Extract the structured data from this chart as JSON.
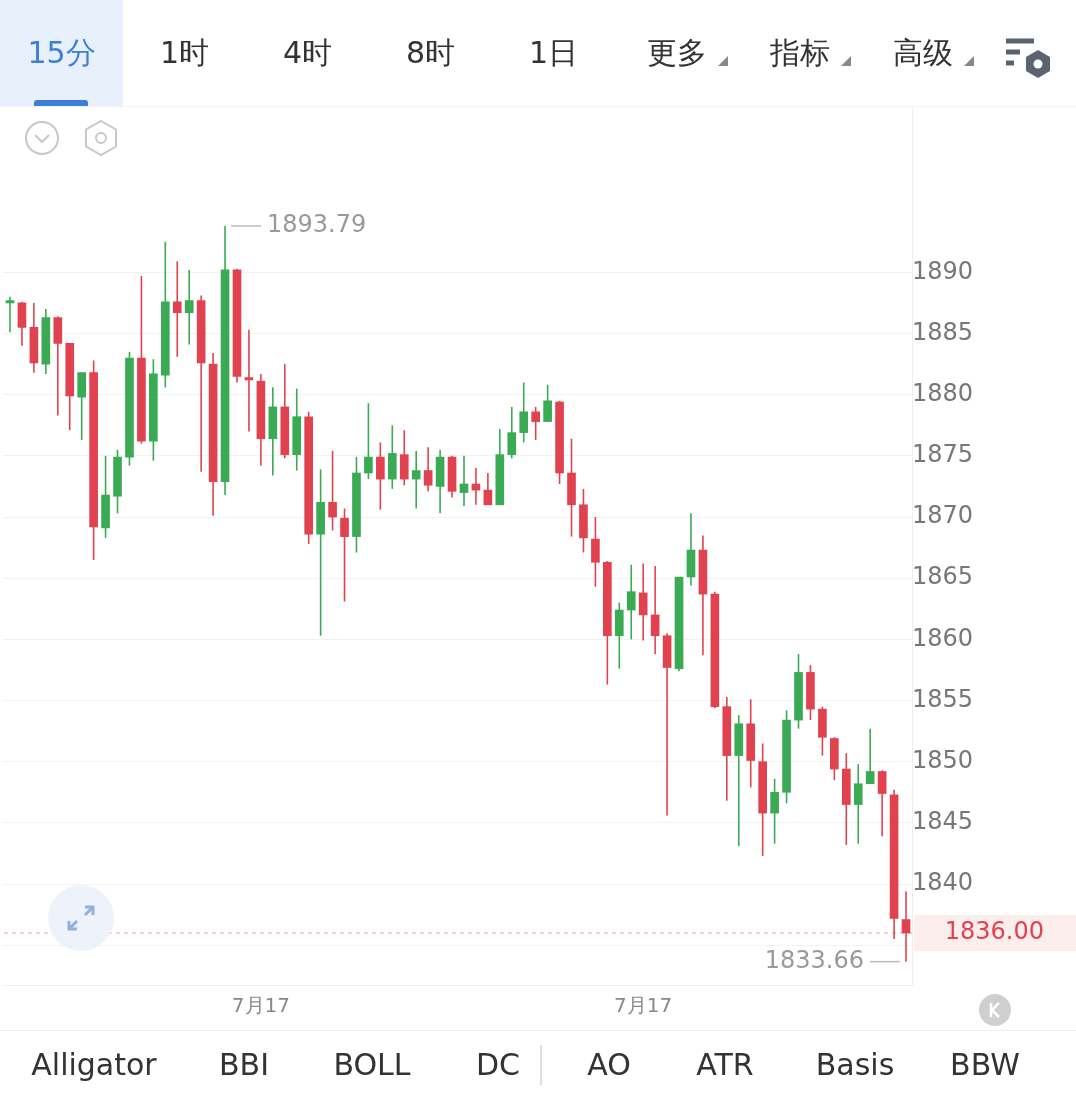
{
  "chart_data": {
    "type": "candlestick",
    "categories": [
      null,
      null,
      null,
      null,
      null,
      null,
      null,
      null,
      null,
      null,
      null,
      null,
      null,
      null,
      null,
      null,
      null,
      null,
      null,
      null,
      null,
      "7月17",
      null,
      null,
      null,
      null,
      null,
      null,
      null,
      null,
      null,
      null,
      null,
      null,
      null,
      null,
      null,
      null,
      null,
      null,
      null,
      null,
      null,
      null,
      null,
      null,
      null,
      null,
      null,
      null,
      null,
      null,
      null,
      "7月17",
      null,
      null,
      null,
      null,
      null,
      null,
      null,
      null,
      null,
      null,
      null,
      null,
      null,
      null,
      null,
      null,
      null,
      null,
      null,
      null,
      null,
      null
    ],
    "ohlc": [
      [
        1887.5,
        1888.0,
        1885.1,
        1887.7
      ],
      [
        1887.5,
        1887.6,
        1884.0,
        1885.5
      ],
      [
        1885.5,
        1887.5,
        1881.8,
        1882.6
      ],
      [
        1882.5,
        1887.0,
        1881.7,
        1886.3
      ],
      [
        1886.3,
        1886.4,
        1878.3,
        1884.2
      ],
      [
        1884.2,
        1884.2,
        1877.1,
        1879.9
      ],
      [
        1879.8,
        1881.8,
        1876.3,
        1881.8
      ],
      [
        1881.8,
        1882.8,
        1866.5,
        1869.2
      ],
      [
        1869.1,
        1875.0,
        1868.3,
        1871.8
      ],
      [
        1871.7,
        1875.5,
        1870.3,
        1874.9
      ],
      [
        1874.9,
        1883.5,
        1874.2,
        1883.0
      ],
      [
        1883.0,
        1889.7,
        1876.0,
        1876.2
      ],
      [
        1876.2,
        1882.9,
        1874.6,
        1881.7
      ],
      [
        1881.6,
        1892.5,
        1880.6,
        1887.6
      ],
      [
        1887.6,
        1890.9,
        1883.1,
        1886.7
      ],
      [
        1886.7,
        1890.2,
        1884.1,
        1887.7
      ],
      [
        1887.7,
        1888.1,
        1873.7,
        1882.6
      ],
      [
        1882.5,
        1883.4,
        1870.1,
        1872.9
      ],
      [
        1872.9,
        1893.79,
        1871.8,
        1890.2
      ],
      [
        1890.2,
        1890.3,
        1881.0,
        1881.5
      ],
      [
        1881.4,
        1885.3,
        1877.0,
        1881.2
      ],
      [
        1881.1,
        1881.7,
        1874.2,
        1876.4
      ],
      [
        1876.4,
        1880.6,
        1873.4,
        1879.0
      ],
      [
        1879.0,
        1882.5,
        1874.8,
        1875.1
      ],
      [
        1875.1,
        1880.5,
        1873.8,
        1878.2
      ],
      [
        1878.2,
        1878.6,
        1867.8,
        1868.6
      ],
      [
        1868.6,
        1873.9,
        1860.3,
        1871.2
      ],
      [
        1871.2,
        1875.4,
        1868.9,
        1870.0
      ],
      [
        1869.9,
        1870.7,
        1863.1,
        1868.4
      ],
      [
        1868.4,
        1874.9,
        1867.1,
        1873.6
      ],
      [
        1873.6,
        1879.3,
        1873.1,
        1874.9
      ],
      [
        1874.9,
        1876.1,
        1870.6,
        1873.1
      ],
      [
        1873.1,
        1877.5,
        1872.3,
        1875.2
      ],
      [
        1875.1,
        1877.1,
        1872.6,
        1873.1
      ],
      [
        1873.1,
        1875.4,
        1870.7,
        1873.8
      ],
      [
        1873.8,
        1875.7,
        1872.1,
        1872.6
      ],
      [
        1872.5,
        1875.5,
        1870.3,
        1874.9
      ],
      [
        1874.9,
        1875.0,
        1871.6,
        1872.1
      ],
      [
        1872.0,
        1875.0,
        1870.9,
        1872.7
      ],
      [
        1872.7,
        1874.0,
        1871.0,
        1872.2
      ],
      [
        1872.2,
        1873.6,
        1871.0,
        1871.0
      ],
      [
        1871.0,
        1877.2,
        1871.0,
        1875.1
      ],
      [
        1875.1,
        1879.0,
        1874.8,
        1876.9
      ],
      [
        1876.9,
        1881.0,
        1876.1,
        1878.6
      ],
      [
        1878.6,
        1879.0,
        1876.3,
        1877.8
      ],
      [
        1877.8,
        1880.8,
        1877.8,
        1879.5
      ],
      [
        1879.4,
        1879.5,
        1872.7,
        1873.6
      ],
      [
        1873.6,
        1876.4,
        1868.4,
        1871.0
      ],
      [
        1871.0,
        1872.3,
        1867.1,
        1868.3
      ],
      [
        1868.2,
        1870.0,
        1864.3,
        1866.3
      ],
      [
        1866.3,
        1866.4,
        1856.3,
        1860.3
      ],
      [
        1860.3,
        1863.0,
        1857.6,
        1862.4
      ],
      [
        1862.4,
        1866.1,
        1860.0,
        1863.9
      ],
      [
        1863.8,
        1866.2,
        1859.9,
        1862.0
      ],
      [
        1862.0,
        1866.0,
        1858.8,
        1860.3
      ],
      [
        1860.3,
        1860.5,
        1845.6,
        1857.7
      ],
      [
        1857.6,
        1865.1,
        1857.4,
        1865.1
      ],
      [
        1865.1,
        1870.3,
        1864.4,
        1867.3
      ],
      [
        1867.3,
        1868.5,
        1858.7,
        1863.7
      ],
      [
        1863.7,
        1863.9,
        1854.4,
        1854.5
      ],
      [
        1854.5,
        1855.3,
        1846.8,
        1850.5
      ],
      [
        1850.5,
        1853.8,
        1843.1,
        1853.1
      ],
      [
        1853.1,
        1855.1,
        1847.9,
        1850.1
      ],
      [
        1850.0,
        1851.5,
        1842.3,
        1845.8
      ],
      [
        1845.8,
        1848.6,
        1843.3,
        1847.5
      ],
      [
        1847.5,
        1854.2,
        1846.6,
        1853.4
      ],
      [
        1853.4,
        1858.8,
        1852.7,
        1857.3
      ],
      [
        1857.3,
        1857.9,
        1853.4,
        1854.3
      ],
      [
        1854.3,
        1854.5,
        1850.5,
        1852.0
      ],
      [
        1851.9,
        1852.0,
        1848.5,
        1849.4
      ],
      [
        1849.4,
        1850.7,
        1843.2,
        1846.5
      ],
      [
        1846.5,
        1849.8,
        1843.3,
        1848.2
      ],
      [
        1848.2,
        1852.7,
        1848.2,
        1849.2
      ],
      [
        1849.2,
        1849.3,
        1843.9,
        1847.4
      ],
      [
        1847.3,
        1847.7,
        1835.5,
        1837.2
      ],
      [
        1837.1,
        1839.4,
        1833.66,
        1836.0
      ]
    ],
    "colors": [
      "#3aaa55",
      "#e0434f",
      "#e0434f",
      "#3aaa55",
      "#e0434f",
      "#e0434f",
      "#3aaa55",
      "#e0434f",
      "#3aaa55",
      "#3aaa55",
      "#3aaa55",
      "#e0434f",
      "#3aaa55",
      "#3aaa55",
      "#e0434f",
      "#3aaa55",
      "#e0434f",
      "#e0434f",
      "#3aaa55",
      "#e0434f",
      "#e0434f",
      "#e0434f",
      "#3aaa55",
      "#e0434f",
      "#3aaa55",
      "#e0434f",
      "#3aaa55",
      "#e0434f",
      "#e0434f",
      "#3aaa55",
      "#3aaa55",
      "#e0434f",
      "#3aaa55",
      "#e0434f",
      "#3aaa55",
      "#e0434f",
      "#3aaa55",
      "#e0434f",
      "#3aaa55",
      "#e0434f",
      "#e0434f",
      "#3aaa55",
      "#3aaa55",
      "#3aaa55",
      "#e0434f",
      "#3aaa55",
      "#e0434f",
      "#e0434f",
      "#e0434f",
      "#e0434f",
      "#e0434f",
      "#3aaa55",
      "#3aaa55",
      "#e0434f",
      "#e0434f",
      "#e0434f",
      "#3aaa55",
      "#3aaa55",
      "#e0434f",
      "#e0434f",
      "#e0434f",
      "#3aaa55",
      "#e0434f",
      "#e0434f",
      "#3aaa55",
      "#3aaa55",
      "#3aaa55",
      "#e0434f",
      "#e0434f",
      "#e0434f",
      "#e0434f",
      "#3aaa55",
      "#3aaa55",
      "#e0434f",
      "#e0434f",
      "#e0434f"
    ],
    "ylim": [
      1831.75,
      1903.4
    ],
    "yticks": [
      {
        "value": 1835,
        "label": null
      },
      1840,
      1845,
      1850,
      1855,
      1860,
      1865,
      1870,
      1875,
      1880,
      1885,
      1890
    ],
    "grid": "y",
    "ref_lines": [
      {
        "axis": "y",
        "value": 1836.0,
        "label": "1836.00",
        "color": "#e0434f"
      }
    ],
    "annotations": [
      "15分",
      "1时",
      "4时",
      "8时",
      "1日",
      "更多",
      "指标",
      "高级",
      "Alligator",
      "BBI",
      "BOLL",
      "DC",
      "AO",
      "ATR",
      "Basis",
      "BBW",
      "1893.79",
      "1833.66"
    ]
  }
}
